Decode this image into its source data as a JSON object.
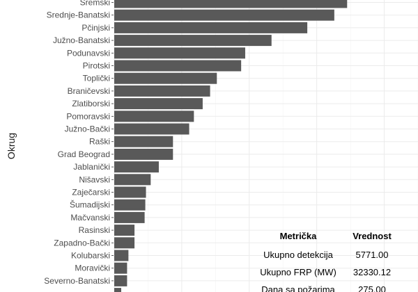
{
  "chart_data": {
    "type": "bar",
    "orientation": "horizontal",
    "ylabel": "Okrug",
    "xlabel": "",
    "grid": true,
    "categories": [
      "Sremski",
      "Srednje-Banatski",
      "Pčinjski",
      "Južno-Banatski",
      "Podunavski",
      "Pirotski",
      "Toplički",
      "Braničevski",
      "Zlatiborski",
      "Pomoravski",
      "Južno-Bački",
      "Raški",
      "Grad Beograd",
      "Jablanički",
      "Nišavski",
      "Zaječarski",
      "Šumadijski",
      "Mačvanski",
      "Rasinski",
      "Zapadno-Bački",
      "Kolubarski",
      "Moravički",
      "Severno-Banatski"
    ],
    "values": [
      345,
      326,
      286,
      233,
      194,
      188,
      152,
      142,
      131,
      118,
      111,
      87,
      87,
      66,
      54,
      47,
      46,
      45,
      30,
      30,
      21,
      19,
      19
    ],
    "xlim": [
      0,
      450
    ]
  },
  "table": {
    "headers": [
      "Metrička",
      "Vrednost"
    ],
    "rows": [
      [
        "Ukupno detekcija",
        "5771.00"
      ],
      [
        "Ukupno FRP (MW)",
        "32330.12"
      ],
      [
        "Dana sa požarima",
        "275.00"
      ]
    ]
  }
}
